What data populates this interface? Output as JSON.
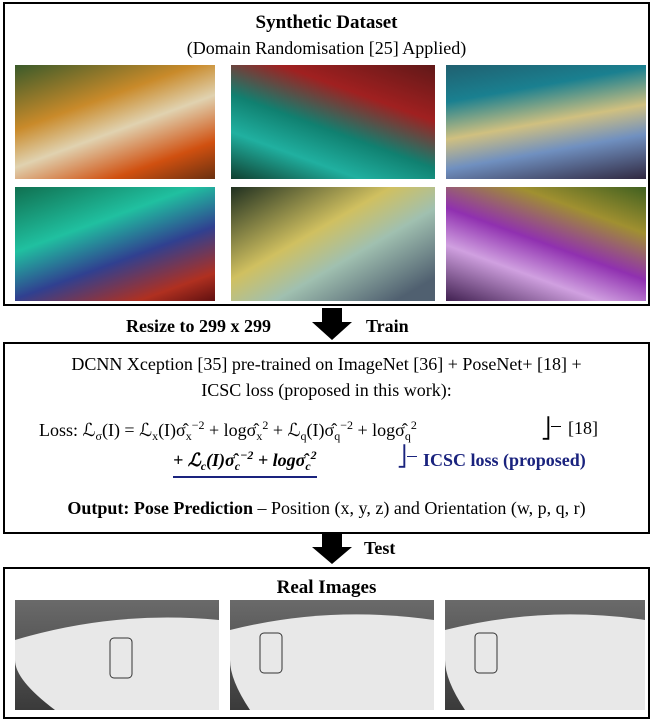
{
  "synthetic": {
    "title": "Synthetic Dataset",
    "subtitle": "(Domain Randomisation [25] Applied)"
  },
  "step1": {
    "left": "Resize to 299 x 299",
    "right": "Train"
  },
  "model": {
    "line1": "DCNN Xception [35] pre-trained on ImageNet [36] + PoseNet+ [18] +",
    "line2": "ICSC loss (proposed in this work):",
    "loss_label": "Loss:",
    "loss_line1": [
      {
        "base": "ℒ",
        "sub": "σ"
      },
      {
        "base": "(I) = ℒ",
        "sub": "x"
      },
      {
        "base": "(I)σ̂",
        "sub": "x",
        "sup": "−2"
      },
      {
        "base": " + logσ̂",
        "sub": "x",
        "sup": "2"
      },
      {
        "base": " + ℒ",
        "sub": "q"
      },
      {
        "base": "(I)σ̂",
        "sub": "q",
        "sup": "−2"
      },
      {
        "base": " + logσ̂",
        "sub": "q",
        "sup": "2"
      }
    ],
    "ref": "[18]",
    "loss_line2": [
      {
        "base": "+ ℒ",
        "sub": "c"
      },
      {
        "base": "(I)σ̂",
        "sub": "c",
        "sup": "−2"
      },
      {
        "base": " + logσ̂",
        "sub": "c",
        "sup": "2"
      }
    ],
    "icsc_note": "ICSC loss (proposed)",
    "output_bold": "Output: Pose Prediction",
    "output_rest": " – Position (x, y, z) and Orientation (w, p, q, r)"
  },
  "step2": {
    "right": "Test"
  },
  "real": {
    "title": "Real Images"
  }
}
